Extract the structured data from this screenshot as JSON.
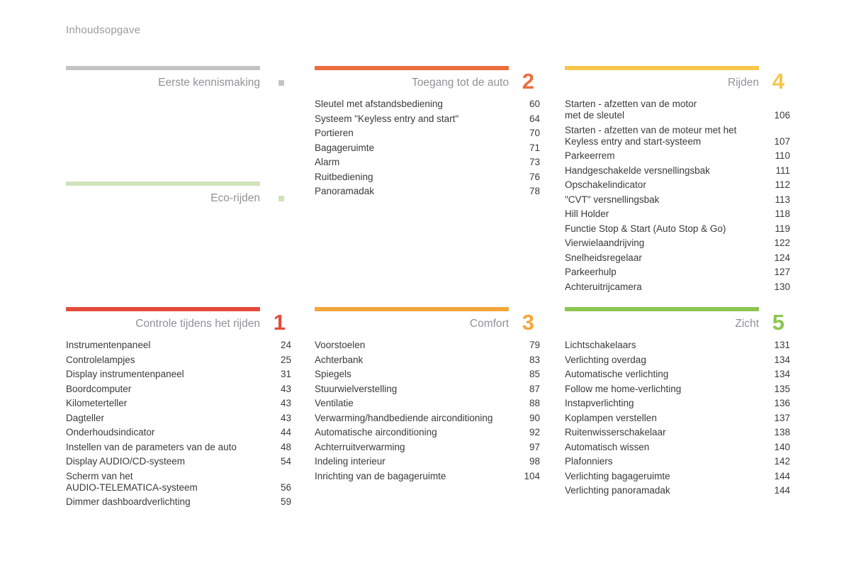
{
  "header": {
    "title": "Inhoudsopgave"
  },
  "sections": [
    {
      "id": "eerste-kennismaking",
      "title": "Eerste kennismaking",
      "number": null,
      "accent": "#c2c4c5",
      "entries": []
    },
    {
      "id": "toegang-tot-de-auto",
      "title": "Toegang tot de auto",
      "number": "2",
      "accent": "#eb6e41",
      "entries": [
        {
          "label": "Sleutel met afstandsbediening",
          "page": "60"
        },
        {
          "label": "Systeem \"Keyless entry and start\"",
          "page": "64"
        },
        {
          "label": "Portieren",
          "page": "70"
        },
        {
          "label": "Bagageruimte",
          "page": "71"
        },
        {
          "label": "Alarm",
          "page": "73"
        },
        {
          "label": "Ruitbediening",
          "page": "76"
        },
        {
          "label": "Panoramadak",
          "page": "78"
        }
      ]
    },
    {
      "id": "rijden",
      "title": "Rijden",
      "number": "4",
      "accent": "#f7c64b",
      "entries": [
        {
          "label": "Starten - afzetten van de motor\nmet de sleutel",
          "page": "106"
        },
        {
          "label": "Starten - afzetten van de moteur met het\nKeyless entry and start-systeem",
          "page": "107"
        },
        {
          "label": "Parkeerrem",
          "page": "110"
        },
        {
          "label": "Handgeschakelde versnellingsbak",
          "page": "111"
        },
        {
          "label": "Opschakelindicator",
          "page": "112"
        },
        {
          "label": "\"CVT\" versnellingsbak",
          "page": "113"
        },
        {
          "label": "Hill Holder",
          "page": "118"
        },
        {
          "label": "Functie Stop & Start (Auto Stop & Go)",
          "page": "119"
        },
        {
          "label": "Vierwielaandrijving",
          "page": "122"
        },
        {
          "label": "Snelheidsregelaar",
          "page": "124"
        },
        {
          "label": "Parkeerhulp",
          "page": "127"
        },
        {
          "label": "Achteruitrijcamera",
          "page": "130"
        }
      ]
    },
    {
      "id": "eco-rijden",
      "title": "Eco-rijden",
      "number": null,
      "accent": "#cfe3ba",
      "entries": []
    },
    {
      "id": "controle-tijdens-het-rijden",
      "title": "Controle tijdens het rijden",
      "number": "1",
      "accent": "#e54b3c",
      "entries": [
        {
          "label": "Instrumentenpaneel",
          "page": "24"
        },
        {
          "label": "Controlelampjes",
          "page": "25"
        },
        {
          "label": "Display instrumentenpaneel",
          "page": "31"
        },
        {
          "label": "Boordcomputer",
          "page": "43"
        },
        {
          "label": "Kilometerteller",
          "page": "43"
        },
        {
          "label": "Dagteller",
          "page": "43"
        },
        {
          "label": "Onderhoudsindicator",
          "page": "44"
        },
        {
          "label": "Instellen van de parameters van de auto",
          "page": "48"
        },
        {
          "label": "Display AUDIO/CD-systeem",
          "page": "54"
        },
        {
          "label": "Scherm van het\nAUDIO-TELEMATICA-systeem",
          "page": "56"
        },
        {
          "label": "Dimmer dashboardverlichting",
          "page": "59"
        }
      ]
    },
    {
      "id": "comfort",
      "title": "Comfort",
      "number": "3",
      "accent": "#f3a63c",
      "entries": [
        {
          "label": "Voorstoelen",
          "page": "79"
        },
        {
          "label": "Achterbank",
          "page": "83"
        },
        {
          "label": "Spiegels",
          "page": "85"
        },
        {
          "label": "Stuurwielverstelling",
          "page": "87"
        },
        {
          "label": "Ventilatie",
          "page": "88"
        },
        {
          "label": "Verwarming/handbediende airconditioning",
          "page": "90"
        },
        {
          "label": "Automatische airconditioning",
          "page": "92"
        },
        {
          "label": "Achterruitverwarming",
          "page": "97"
        },
        {
          "label": "Indeling interieur",
          "page": "98"
        },
        {
          "label": "Inrichting van de bagageruimte",
          "page": "104"
        }
      ]
    },
    {
      "id": "zicht",
      "title": "Zicht",
      "number": "5",
      "accent": "#8cc551",
      "entries": [
        {
          "label": "Lichtschakelaars",
          "page": "131"
        },
        {
          "label": "Verlichting overdag",
          "page": "134"
        },
        {
          "label": "Automatische verlichting",
          "page": "134"
        },
        {
          "label": "Follow me home-verlichting",
          "page": "135"
        },
        {
          "label": "Instapverlichting",
          "page": "136"
        },
        {
          "label": "Koplampen verstellen",
          "page": "137"
        },
        {
          "label": "Ruitenwisserschakelaar",
          "page": "138"
        },
        {
          "label": "Automatisch wissen",
          "page": "140"
        },
        {
          "label": "Plafonniers",
          "page": "142"
        },
        {
          "label": "Verlichting bagageruimte",
          "page": "144"
        },
        {
          "label": "Verlichting panoramadak",
          "page": "144"
        }
      ]
    }
  ]
}
